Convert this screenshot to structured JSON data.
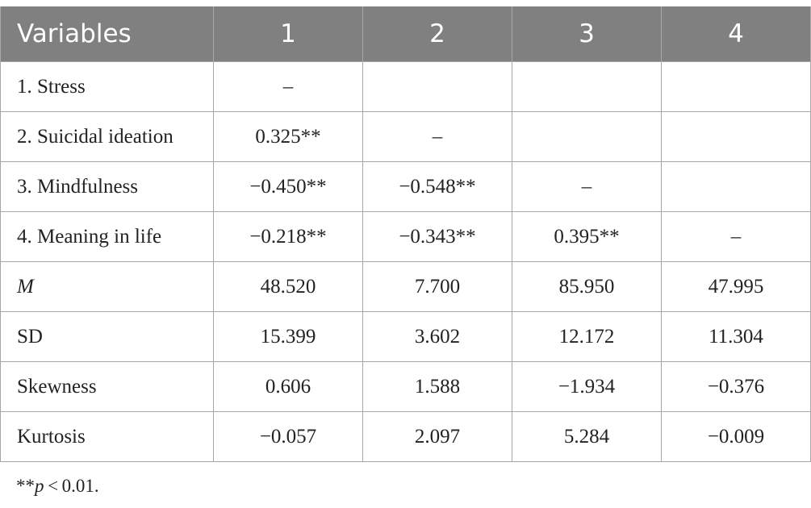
{
  "table": {
    "headers": [
      "Variables",
      "1",
      "2",
      "3",
      "4"
    ],
    "rows": [
      {
        "label": "1. Stress",
        "italic": false,
        "cells": [
          "–",
          "",
          "",
          ""
        ]
      },
      {
        "label": "2. Suicidal ideation",
        "italic": false,
        "cells": [
          "0.325**",
          "–",
          "",
          ""
        ]
      },
      {
        "label": "3. Mindfulness",
        "italic": false,
        "cells": [
          "−0.450**",
          "−0.548**",
          "–",
          ""
        ]
      },
      {
        "label": "4. Meaning in life",
        "italic": false,
        "cells": [
          "−0.218**",
          "−0.343**",
          "0.395**",
          "–"
        ]
      },
      {
        "label": "M",
        "italic": true,
        "cells": [
          "48.520",
          "7.700",
          "85.950",
          "47.995"
        ]
      },
      {
        "label": "SD",
        "italic": false,
        "cells": [
          "15.399",
          "3.602",
          "12.172",
          "11.304"
        ]
      },
      {
        "label": "Skewness",
        "italic": false,
        "cells": [
          "0.606",
          "1.588",
          "−1.934",
          "−0.376"
        ]
      },
      {
        "label": "Kurtosis",
        "italic": false,
        "cells": [
          "−0.057",
          "2.097",
          "5.284",
          "−0.009"
        ]
      }
    ]
  },
  "footnote": {
    "stars": "**",
    "p": "p",
    "rest": " < 0.01."
  },
  "colors": {
    "header_bg": "#808080",
    "header_text": "#ffffff",
    "border": "#a6a6a6"
  }
}
